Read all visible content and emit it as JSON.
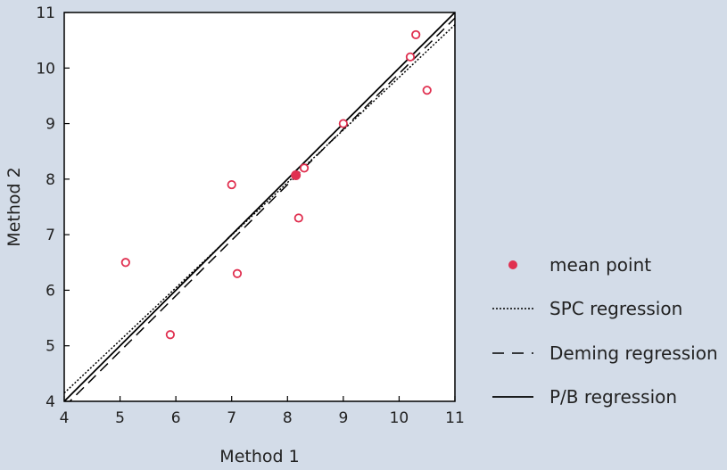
{
  "colors": {
    "background": "#d3dce8",
    "plot_bg": "#ffffff",
    "marker": "#e03050",
    "line": "#000000"
  },
  "chart_data": {
    "type": "scatter",
    "title": "",
    "xlabel": "Method 1",
    "ylabel": "Method 2",
    "xlim": [
      4,
      11
    ],
    "ylim": [
      4,
      11
    ],
    "xticks": [
      "4",
      "5",
      "6",
      "7",
      "8",
      "9",
      "10",
      "11"
    ],
    "yticks": [
      "4",
      "5",
      "6",
      "7",
      "8",
      "9",
      "10",
      "11"
    ],
    "grid": false,
    "legend_position": "right",
    "points": [
      {
        "x": 5.1,
        "y": 6.5
      },
      {
        "x": 5.9,
        "y": 5.2
      },
      {
        "x": 7.0,
        "y": 7.9
      },
      {
        "x": 7.1,
        "y": 6.3
      },
      {
        "x": 8.2,
        "y": 7.3
      },
      {
        "x": 8.3,
        "y": 8.2
      },
      {
        "x": 9.0,
        "y": 9.0
      },
      {
        "x": 10.2,
        "y": 10.2
      },
      {
        "x": 10.3,
        "y": 10.6
      },
      {
        "x": 10.5,
        "y": 9.6
      }
    ],
    "mean_point": {
      "x": 8.15,
      "y": 8.07
    },
    "lines": [
      {
        "name": "SPC regression",
        "style": "dotted",
        "x": [
          4,
          11
        ],
        "y": [
          4.15,
          10.78
        ]
      },
      {
        "name": "Deming regression",
        "style": "dashed",
        "x": [
          4,
          11
        ],
        "y": [
          3.9,
          10.9
        ]
      },
      {
        "name": "P/B regression",
        "style": "solid",
        "x": [
          4,
          11
        ],
        "y": [
          4.0,
          11.0
        ]
      }
    ],
    "legend": [
      {
        "label": "mean point",
        "marker": "filled-circle"
      },
      {
        "label": "SPC regression",
        "marker": "dotted"
      },
      {
        "label": "Deming regression",
        "marker": "dashed"
      },
      {
        "label": "P/B regression",
        "marker": "solid"
      }
    ]
  }
}
